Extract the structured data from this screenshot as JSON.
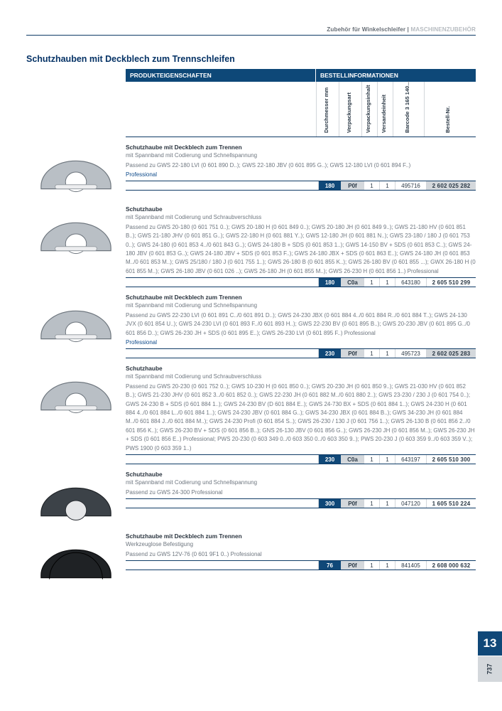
{
  "breadcrumb": {
    "part1": "Zubehör für Winkelschleifer",
    "sep": " | ",
    "part2": "MASCHINENZUBEHÖR"
  },
  "section_title": "Schutzhauben mit Deckblech zum Trennschleifen",
  "thead": {
    "left": "PRODUKTEIGENSCHAFTEN",
    "right": "BESTELLINFORMATIONEN"
  },
  "cols": {
    "dm": "Durchmesser mm",
    "vp": "Verpackungsart",
    "vi": "Verpackungsinhalt",
    "ve": "Versandeinheit",
    "bc": "Barcode 3 165 140…",
    "bn": "Bestell-Nr."
  },
  "side": {
    "tab": "13",
    "page": "737"
  },
  "products": [
    {
      "title": "Schutzhaube mit Deckblech zum Trennen",
      "sub": "mit Spannband mit Codierung und Schnellspannung",
      "desc": "Passend zu GWS 22-180 LVI (0 601 890 D..); GWS 22-180 JBV (0 601 895 G..); GWS 12-180 LVI (0 601 894 F..)",
      "prof": "Professional",
      "dm": "180",
      "vp": "P0f",
      "vi": "1",
      "ve": "1",
      "bc": "495716",
      "bn": "2 602 025 282",
      "bn_grey": true,
      "svg": "guard-light"
    },
    {
      "title": "Schutzhaube",
      "sub": "mit Spannband mit Codierung und Schraubverschluss",
      "desc": "Passend zu GWS 20-180 (0 601 751 0..); GWS 20-180 H (0 601 849 0..); GWS 20-180 JH (0 601 849 9..); GWS 21-180 HV (0 601 851 B..); GWS 21-180 JHV (0 601 851 G..); GWS 22-180 H (0 601 881 Y..); GWS 12-180 JH (0 601 881 N..); GWS 23-180 / 180 J (0 601 753 0..); GWS 24-180 (0 601 853 4../0 601 843 G..); GWS 24-180 B + SDS (0 601 853 1..); GWS 14-150 BV + SDS (0 601 853 C..); GWS 24-180 JBV (0 601 853 G..); GWS 24-180 JBV + SDS (0 601 853 F..); GWS 24-180 JBX + SDS (0 601 863 E..); GWS 24-180 JH (0 601 853 M../0 601 853 M..); GWS 25/180 / 180 J (0 601 755 1..); GWS 26-180 B (0 601 855 K..); GWS 26-180 BV (0 601 855 ...); GWX 26-180 H (0 601 855 M..); GWS 26-180 JBV (0 601 026 ..); GWS 26-180 JH (0 601 855 M..); GWS 26-230 H (0 601 856 1..) Professional",
      "prof": "",
      "dm": "180",
      "vp": "C0a",
      "vi": "1",
      "ve": "1",
      "bc": "643180",
      "bn": "2 605 510 299",
      "bn_grey": false,
      "svg": "guard-light"
    },
    {
      "title": "Schutzhaube mit Deckblech zum Trennen",
      "sub": "mit Spannband mit Codierung und Schnellspannung",
      "desc": "Passend zu GWS 22-230 LVI (0 601 891 C../0 601 891 D..); GWS 24-230 JBX (0 601 884 4../0 601 884 R../0 601 884 T..); GWS 24-130 JVX (0 601 854 U..); GWS 24-230 LVI (0 601 893 F../0 601 893 H..); GWS 22-230 BV (0 601 895 B..); GWS 20-230 JBV (0 601 895 G../0 601 856 D..); GWS 26-230 JH + SDS (0 601 895 E..); GWS 26-230 LVI (0 601 895 F..) Professional",
      "prof": "Professional",
      "dm": "230",
      "vp": "P0f",
      "vi": "1",
      "ve": "1",
      "bc": "495723",
      "bn": "2 602 025 283",
      "bn_grey": true,
      "svg": "guard-light"
    },
    {
      "title": "Schutzhaube",
      "sub": "mit Spannband mit Codierung und Schraubverschluss",
      "desc": "Passend zu GWS 20-230 (0 601 752 0..); GWS 10-230 H (0 601 850 0..); GWS 20-230 JH (0 601 850 9..); GWS 21-030 HV (0 601 852 B..); GWS 21-230 JHV (0 601 852 3../0 601 852 0..); GWS 22-230 JH (0 601 882 M../0 601 880 2..); GWS 23-230 / 230 J (0 601 754 0..); GWS 24-230 B + SDS (0 601 884 1..); GWS 24-230 BV (D 601 884 E..); GWS 24-730 BX + SDS (0 601 884 1..); GWS 24-230 H (0 601 884 4../0 601 884 L../0 601 884 1..); GWS 24-230 JBV (0 601 884 G..); GWS 34-230 JBX (0 601 884 B..); GWS 34-230 JH (0 601 884 M../0 601 884 J../0 601 884 M..); GWS 24-230 Profi (0 601 854 S..); GWS 26-230 / 130 J (0 601 756 1..); GWS 26-130 B (0 601 856 2../0 601 856 K..); GWS 26-230 BV + SDS (0 601 856 B..); GNS 26-130 JBV (0 601 856 G..); GWS 26-230 JH (0 601 856 M..); GWS 26-230 JH + SDS (0 601 856 E..) Professional; PWS 20-230 (0 603 349 0../0 603 350 0../0 603 350 9..); PWS 20-230 J (0 603 359 9../0 603 359 V..); PWS 1900 (0 603 359 1..)",
      "prof": "",
      "dm": "230",
      "vp": "C0a",
      "vi": "1",
      "ve": "1",
      "bc": "643197",
      "bn": "2 605 510 300",
      "bn_grey": false,
      "svg": "guard-light"
    },
    {
      "title": "Schutzhaube",
      "sub": "mit Spannband mit Codierung und Schnellspannung",
      "desc": "Passend zu GWS 24-300 Professional",
      "prof": "",
      "dm": "300",
      "vp": "P0f",
      "vi": "1",
      "ve": "1",
      "bc": "047120",
      "bn": "1 605 510 224",
      "bn_grey": false,
      "svg": "guard-dark"
    },
    {
      "title": "Schutzhaube mit Deckblech zum Trennen",
      "sub": "Werkzeuglose Befestigung",
      "desc": "Passend zu GWS 12V-76 (0 601 9F1 0..) Professional",
      "prof": "",
      "dm": "76",
      "vp": "P0f",
      "vi": "1",
      "ve": "1",
      "bc": "841405",
      "bn": "2 608 000 632",
      "bn_grey": false,
      "svg": "guard-black"
    }
  ]
}
